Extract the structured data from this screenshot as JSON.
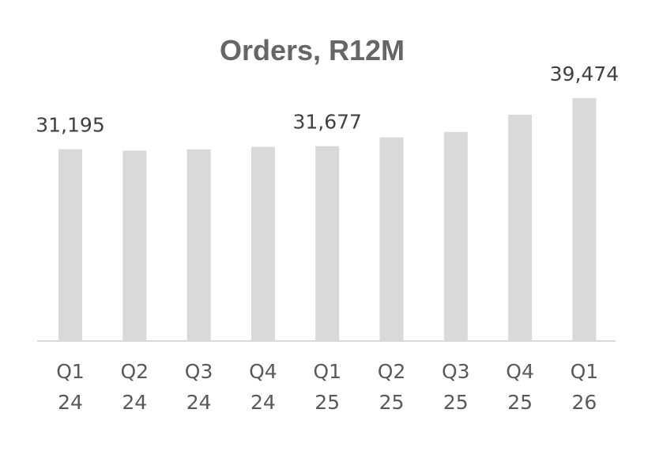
{
  "chart_data": {
    "type": "bar",
    "title": "Orders, R12M",
    "xlabel": "",
    "ylabel": "",
    "categories": [
      [
        "Q1",
        "24"
      ],
      [
        "Q2",
        "24"
      ],
      [
        "Q3",
        "24"
      ],
      [
        "Q4",
        "24"
      ],
      [
        "Q1",
        "25"
      ],
      [
        "Q2",
        "25"
      ],
      [
        "Q3",
        "25"
      ],
      [
        "Q4",
        "25"
      ],
      [
        "Q1",
        "26"
      ]
    ],
    "values": [
      31195,
      30950,
      31150,
      31550,
      31677,
      33100,
      34000,
      36800,
      39474
    ],
    "data_labels": [
      "31,195",
      "",
      "",
      "",
      "31,677",
      "",
      "",
      "",
      "39,474"
    ],
    "ylim": [
      0,
      40000
    ],
    "grid": false,
    "legend": "none",
    "colors": {
      "bar": "#d9d9d9",
      "title": "#666666",
      "text": "#404040",
      "axis": "#d9d9d9"
    }
  }
}
